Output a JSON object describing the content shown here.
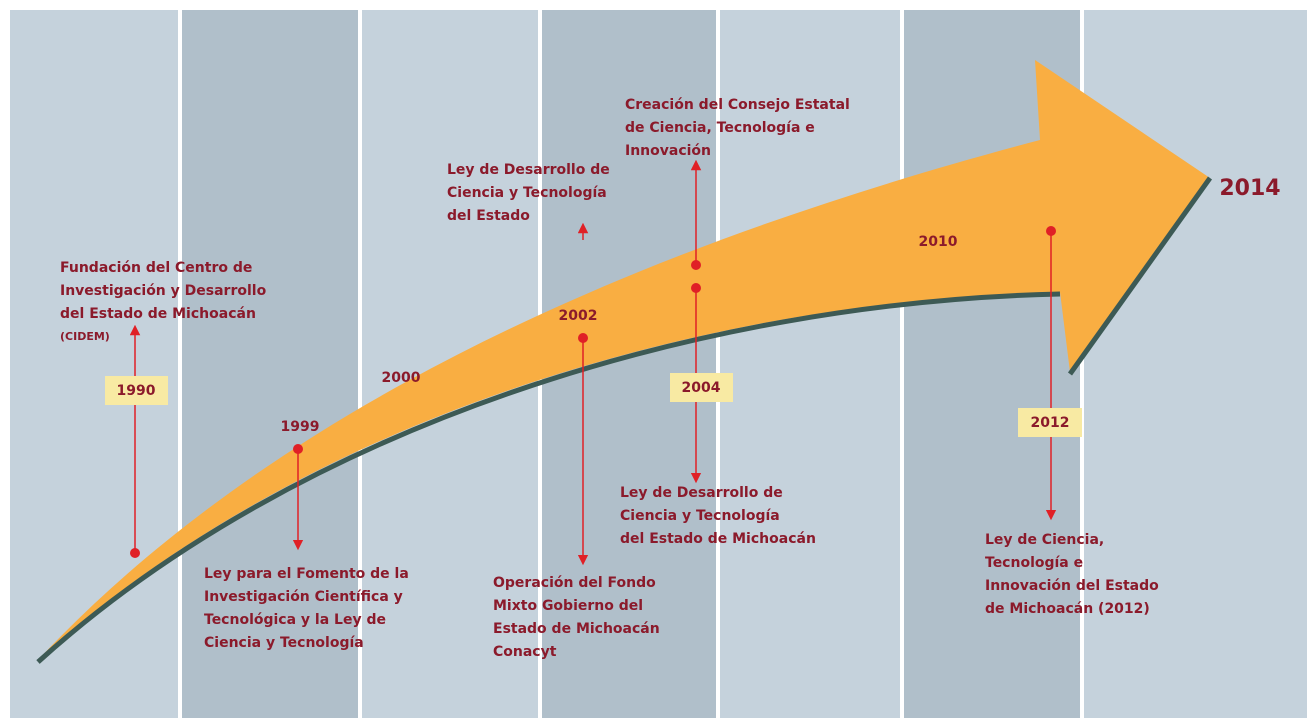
{
  "years": [
    "1990",
    "1999",
    "2000",
    "2002",
    "2004",
    "2010",
    "2012",
    "2014"
  ],
  "events": [
    {
      "lines": [
        "Fundación del Centro de",
        "Investigación y Desarrollo",
        "del Estado de Michoacán",
        "(CIDEM)"
      ]
    },
    {
      "lines": [
        "Ley para el Fomento de la",
        "Investigación Científica y",
        "Tecnológica y la Ley de",
        "Ciencia y Tecnología"
      ]
    },
    {
      "lines": [
        "Ley de Desarrollo de",
        "Ciencia y Tecnología",
        "del Estado"
      ]
    },
    {
      "lines": [
        "Operación del Fondo",
        "Mixto Gobierno del",
        "Estado de Michoacán",
        "Conacyt"
      ]
    },
    {
      "lines": [
        "Creación del Consejo Estatal",
        "de Ciencia, Tecnología e",
        "Innovación"
      ]
    },
    {
      "lines": [
        "Ley de Desarrollo de",
        "Ciencia y Tecnología",
        "del Estado de Michoacán"
      ]
    },
    {
      "lines": [
        "Ley de Ciencia,",
        "Tecnología e",
        "Innovación del Estado",
        "de Michoacán (2012)"
      ]
    }
  ]
}
